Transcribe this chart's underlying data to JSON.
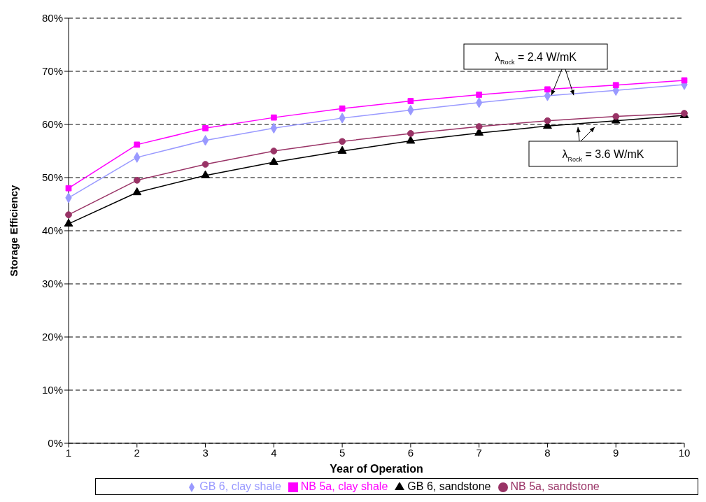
{
  "chart_data": {
    "type": "line",
    "xlabel": "Year of Operation",
    "ylabel": "Storage Efficiency",
    "categories": [
      "1",
      "2",
      "3",
      "4",
      "5",
      "6",
      "7",
      "8",
      "9",
      "10"
    ],
    "series": [
      {
        "name": "GB 6, clay shale",
        "color": "#9999ff",
        "marker": "diamond",
        "values": [
          46.2,
          53.8,
          57.0,
          59.3,
          61.2,
          62.7,
          64.1,
          65.4,
          66.4,
          67.5
        ]
      },
      {
        "name": "NB 5a, clay shale",
        "color": "#ff00ff",
        "marker": "square",
        "values": [
          48.0,
          56.2,
          59.3,
          61.3,
          63.0,
          64.4,
          65.6,
          66.6,
          67.4,
          68.3
        ]
      },
      {
        "name": "GB 6, sandstone",
        "color": "#000000",
        "marker": "triangle",
        "values": [
          41.3,
          47.2,
          50.4,
          52.9,
          55.0,
          56.9,
          58.4,
          59.7,
          60.7,
          61.7
        ]
      },
      {
        "name": "NB 5a, sandstone",
        "color": "#993366",
        "marker": "circle",
        "values": [
          43.0,
          49.5,
          52.5,
          55.0,
          56.8,
          58.3,
          59.6,
          60.7,
          61.5,
          62.1
        ]
      }
    ],
    "ylim": [
      0,
      80
    ],
    "yticks": [
      {
        "value": 0,
        "label": "0%"
      },
      {
        "value": 10,
        "label": "10%"
      },
      {
        "value": 20,
        "label": "20%"
      },
      {
        "value": 30,
        "label": "30%"
      },
      {
        "value": 40,
        "label": "40%"
      },
      {
        "value": 50,
        "label": "50%"
      },
      {
        "value": 60,
        "label": "60%"
      },
      {
        "value": 70,
        "label": "70%"
      },
      {
        "value": 80,
        "label": "80%"
      }
    ],
    "grid": "y",
    "legend": "bottom",
    "line_style": "solid",
    "annotations": [
      {
        "text": "λ$_{Rock}$ = 2.4 W/mK",
        "y": 66.5
      },
      {
        "text": "λ$_{Rock}$ = 3.6 W/mK",
        "y": 60.5
      }
    ]
  }
}
